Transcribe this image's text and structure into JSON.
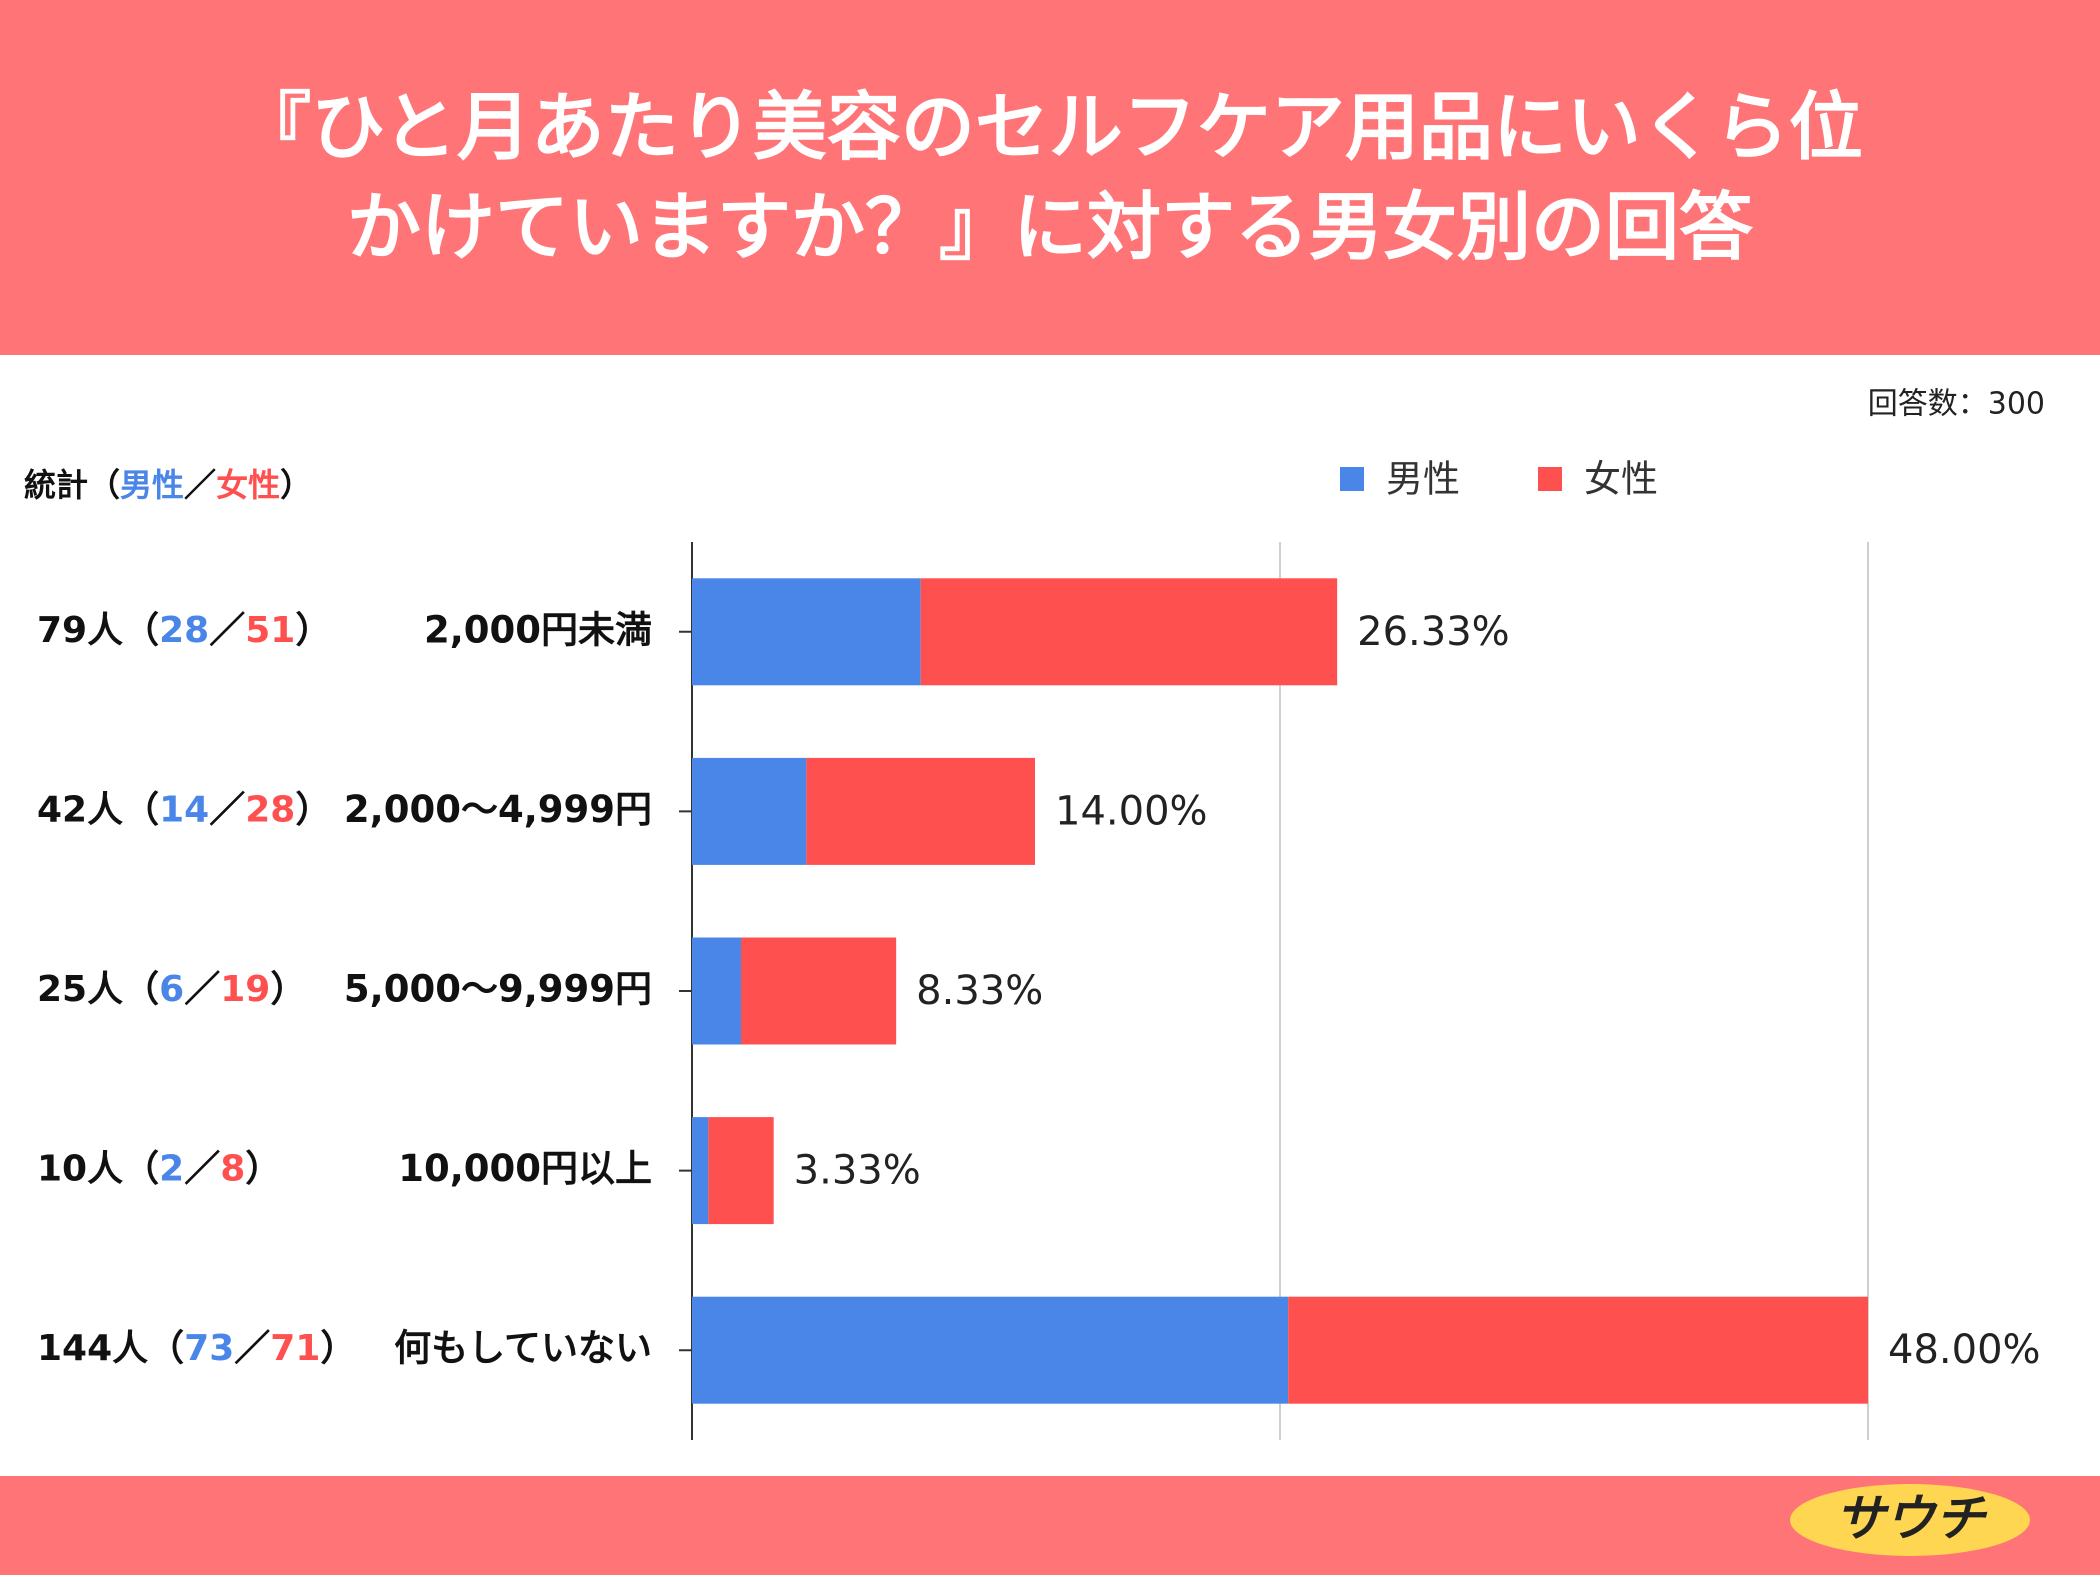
{
  "chart_data": {
    "type": "stacked_barh",
    "title": [
      "『ひと月あたり美容のセルフケア用品にいくら位",
      "かけていますか？』に対する男女別の回答"
    ],
    "note": "回答数：300",
    "stats_label": "統計",
    "stats_brackets": [
      "（",
      "／",
      "）"
    ],
    "categories": [
      "2,000円未満",
      "2,000〜4,999円",
      "5,000〜9,999円",
      "10,000円以上",
      "何もしていない"
    ],
    "series": [
      {
        "name": "男性",
        "color": "#4a86e8",
        "values": [
          28,
          14,
          6,
          2,
          73
        ]
      },
      {
        "name": "女性",
        "color": "#ff5050",
        "values": [
          51,
          28,
          19,
          8,
          71
        ]
      }
    ],
    "totals": [
      79,
      42,
      25,
      10,
      144
    ],
    "total_labels": [
      "79人",
      "42人",
      "25人",
      "10人",
      "144人"
    ],
    "percents": [
      26.33,
      14,
      8.33,
      3.33,
      48
    ],
    "percent_labels": [
      "26.33%",
      "14.00%",
      "8.33%",
      "3.33%",
      "48.00%"
    ],
    "xlim": [
      0,
      144
    ],
    "xticks": [
      0,
      72,
      144
    ],
    "grid": true,
    "legend": "top",
    "logo": "サウチ"
  }
}
